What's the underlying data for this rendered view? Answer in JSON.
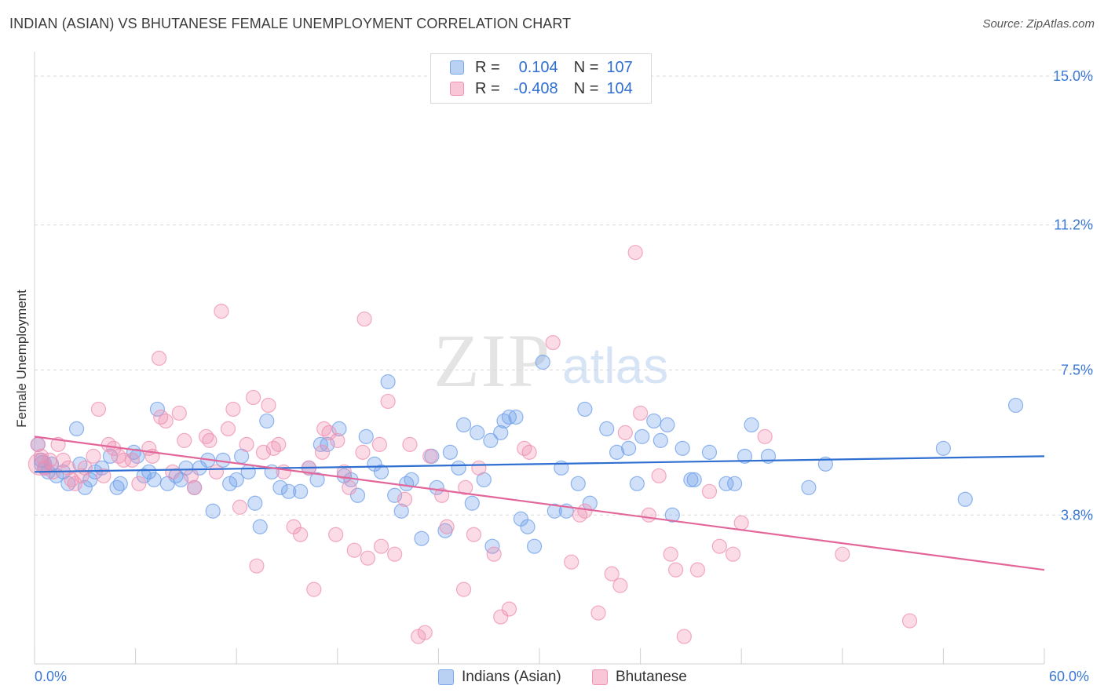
{
  "title": "INDIAN (ASIAN) VS BHUTANESE FEMALE UNEMPLOYMENT CORRELATION CHART",
  "source": "Source: ZipAtlas.com",
  "watermark": {
    "zip": "ZIP",
    "atlas": "atlas"
  },
  "legend": {
    "r_label": "R =",
    "n_label": "N =",
    "rows": [
      {
        "r": "0.104",
        "n": "107",
        "color": "#b9d2f3"
      },
      {
        "r": "-0.408",
        "n": "104",
        "color": "#f8c6d6"
      }
    ]
  },
  "chart_data": {
    "type": "scatter",
    "title": "INDIAN (ASIAN) VS BHUTANESE FEMALE UNEMPLOYMENT CORRELATION CHART",
    "xlabel": "",
    "ylabel": "Female Unemployment",
    "xlim": [
      0,
      60
    ],
    "ylim": [
      0,
      15
    ],
    "x_tick_labels": [
      "0.0%",
      "60.0%"
    ],
    "y_ticks": [
      3.8,
      7.5,
      11.2,
      15.0
    ],
    "y_tick_labels": [
      "3.8%",
      "7.5%",
      "11.2%",
      "15.0%"
    ],
    "grid": true,
    "legend_position": "top-center",
    "colors": {
      "blue": "#6d9eea",
      "pink": "#ef8fb0",
      "blue_line": "#2f6fd1",
      "pink_line": "#e3669a"
    },
    "series": [
      {
        "name": "Indians (Asian)",
        "r": 0.104,
        "n": 107,
        "trend": {
          "x": [
            0,
            60
          ],
          "y": [
            4.9,
            5.3
          ]
        },
        "points": [
          [
            0.2,
            5.6
          ],
          [
            0.4,
            5.2
          ],
          [
            0.6,
            5.0
          ],
          [
            0.8,
            4.9
          ],
          [
            1.0,
            5.1
          ],
          [
            1.3,
            4.8
          ],
          [
            1.7,
            4.9
          ],
          [
            2.0,
            4.6
          ],
          [
            2.5,
            6.0
          ],
          [
            2.7,
            5.1
          ],
          [
            3.0,
            4.5
          ],
          [
            3.3,
            4.7
          ],
          [
            3.6,
            4.9
          ],
          [
            4.0,
            5.0
          ],
          [
            4.5,
            5.3
          ],
          [
            4.9,
            4.5
          ],
          [
            5.1,
            4.6
          ],
          [
            5.9,
            5.4
          ],
          [
            6.1,
            5.3
          ],
          [
            6.5,
            4.8
          ],
          [
            6.8,
            4.9
          ],
          [
            7.1,
            4.7
          ],
          [
            7.3,
            6.5
          ],
          [
            7.9,
            4.6
          ],
          [
            8.4,
            4.8
          ],
          [
            8.7,
            4.7
          ],
          [
            9.0,
            5.0
          ],
          [
            9.5,
            4.5
          ],
          [
            9.8,
            5.0
          ],
          [
            10.3,
            5.2
          ],
          [
            10.6,
            3.9
          ],
          [
            11.2,
            5.2
          ],
          [
            11.6,
            4.6
          ],
          [
            12.0,
            4.7
          ],
          [
            12.3,
            5.3
          ],
          [
            12.7,
            4.9
          ],
          [
            13.1,
            4.1
          ],
          [
            13.4,
            3.5
          ],
          [
            13.8,
            6.2
          ],
          [
            14.1,
            4.9
          ],
          [
            14.6,
            4.5
          ],
          [
            15.1,
            4.4
          ],
          [
            15.8,
            4.4
          ],
          [
            16.3,
            5.0
          ],
          [
            16.8,
            4.7
          ],
          [
            17.0,
            5.6
          ],
          [
            17.4,
            5.6
          ],
          [
            18.1,
            6.0
          ],
          [
            18.4,
            4.8
          ],
          [
            18.8,
            4.7
          ],
          [
            19.2,
            4.3
          ],
          [
            19.7,
            5.8
          ],
          [
            20.2,
            5.1
          ],
          [
            20.6,
            4.9
          ],
          [
            21.0,
            7.2
          ],
          [
            21.4,
            4.3
          ],
          [
            21.8,
            3.9
          ],
          [
            22.1,
            4.6
          ],
          [
            22.4,
            4.7
          ],
          [
            23.0,
            3.2
          ],
          [
            23.6,
            5.3
          ],
          [
            23.9,
            4.5
          ],
          [
            24.4,
            3.4
          ],
          [
            24.7,
            5.4
          ],
          [
            25.2,
            5.0
          ],
          [
            25.5,
            6.1
          ],
          [
            26.0,
            4.1
          ],
          [
            26.3,
            5.9
          ],
          [
            26.7,
            4.7
          ],
          [
            27.1,
            5.7
          ],
          [
            27.2,
            3.0
          ],
          [
            27.7,
            5.9
          ],
          [
            27.9,
            6.2
          ],
          [
            28.2,
            6.3
          ],
          [
            28.6,
            6.3
          ],
          [
            28.9,
            3.7
          ],
          [
            29.3,
            3.5
          ],
          [
            29.7,
            3.0
          ],
          [
            30.2,
            7.7
          ],
          [
            30.9,
            3.9
          ],
          [
            31.3,
            5.0
          ],
          [
            31.6,
            3.9
          ],
          [
            32.3,
            4.6
          ],
          [
            32.7,
            6.5
          ],
          [
            33.0,
            4.1
          ],
          [
            34.0,
            6.0
          ],
          [
            34.6,
            5.4
          ],
          [
            35.3,
            5.5
          ],
          [
            35.8,
            4.6
          ],
          [
            36.1,
            5.8
          ],
          [
            36.8,
            6.2
          ],
          [
            37.2,
            5.7
          ],
          [
            37.6,
            6.1
          ],
          [
            37.9,
            3.8
          ],
          [
            38.5,
            5.5
          ],
          [
            39.0,
            4.7
          ],
          [
            39.2,
            4.7
          ],
          [
            40.1,
            5.4
          ],
          [
            41.1,
            4.6
          ],
          [
            41.6,
            4.6
          ],
          [
            42.2,
            5.3
          ],
          [
            42.6,
            6.1
          ],
          [
            43.6,
            5.3
          ],
          [
            46.0,
            4.5
          ],
          [
            47.0,
            5.1
          ],
          [
            54.0,
            5.5
          ],
          [
            55.3,
            4.2
          ],
          [
            58.3,
            6.6
          ]
        ]
      },
      {
        "name": "Bhutanese",
        "r": -0.408,
        "n": 104,
        "trend": {
          "x": [
            0,
            60
          ],
          "y": [
            5.8,
            2.4
          ]
        },
        "points": [
          [
            0.2,
            5.6
          ],
          [
            0.4,
            5.3
          ],
          [
            0.6,
            5.0
          ],
          [
            0.9,
            5.2
          ],
          [
            1.1,
            4.9
          ],
          [
            1.4,
            5.6
          ],
          [
            1.7,
            5.2
          ],
          [
            2.0,
            5.0
          ],
          [
            2.2,
            4.7
          ],
          [
            2.4,
            4.6
          ],
          [
            2.8,
            4.8
          ],
          [
            3.0,
            5.0
          ],
          [
            3.5,
            5.3
          ],
          [
            3.8,
            6.5
          ],
          [
            4.1,
            4.8
          ],
          [
            4.4,
            5.6
          ],
          [
            4.7,
            5.5
          ],
          [
            5.0,
            5.3
          ],
          [
            5.3,
            5.2
          ],
          [
            5.8,
            5.2
          ],
          [
            6.2,
            4.6
          ],
          [
            6.8,
            5.5
          ],
          [
            7.0,
            5.3
          ],
          [
            7.4,
            7.8
          ],
          [
            7.5,
            6.3
          ],
          [
            7.8,
            6.2
          ],
          [
            8.2,
            4.9
          ],
          [
            8.6,
            6.4
          ],
          [
            8.9,
            5.7
          ],
          [
            9.3,
            4.8
          ],
          [
            9.5,
            4.5
          ],
          [
            10.2,
            5.8
          ],
          [
            10.4,
            5.7
          ],
          [
            10.8,
            4.9
          ],
          [
            11.1,
            9.0
          ],
          [
            11.5,
            6.0
          ],
          [
            11.8,
            6.5
          ],
          [
            12.2,
            4.0
          ],
          [
            12.6,
            5.6
          ],
          [
            13.0,
            6.8
          ],
          [
            13.2,
            2.5
          ],
          [
            13.6,
            5.4
          ],
          [
            13.9,
            6.6
          ],
          [
            14.2,
            5.5
          ],
          [
            14.5,
            5.6
          ],
          [
            14.8,
            4.9
          ],
          [
            15.4,
            3.5
          ],
          [
            15.8,
            3.3
          ],
          [
            16.3,
            5.0
          ],
          [
            16.6,
            1.9
          ],
          [
            17.1,
            5.4
          ],
          [
            17.2,
            6.0
          ],
          [
            17.5,
            5.9
          ],
          [
            17.9,
            3.3
          ],
          [
            18.0,
            5.7
          ],
          [
            18.4,
            4.9
          ],
          [
            18.7,
            4.5
          ],
          [
            19.0,
            2.9
          ],
          [
            19.5,
            5.4
          ],
          [
            19.6,
            8.8
          ],
          [
            19.8,
            2.7
          ],
          [
            20.5,
            5.6
          ],
          [
            20.6,
            3.0
          ],
          [
            21.0,
            6.7
          ],
          [
            21.4,
            2.8
          ],
          [
            22.0,
            4.2
          ],
          [
            22.3,
            5.6
          ],
          [
            22.8,
            0.7
          ],
          [
            23.2,
            0.8
          ],
          [
            23.5,
            5.3
          ],
          [
            24.2,
            4.3
          ],
          [
            24.5,
            3.5
          ],
          [
            25.5,
            1.9
          ],
          [
            25.6,
            4.5
          ],
          [
            26.1,
            3.3
          ],
          [
            26.4,
            5.0
          ],
          [
            27.3,
            2.8
          ],
          [
            27.7,
            1.2
          ],
          [
            28.2,
            1.4
          ],
          [
            29.1,
            5.5
          ],
          [
            29.4,
            5.4
          ],
          [
            30.8,
            8.2
          ],
          [
            31.9,
            2.6
          ],
          [
            32.4,
            3.8
          ],
          [
            32.7,
            3.9
          ],
          [
            33.5,
            1.3
          ],
          [
            34.3,
            2.3
          ],
          [
            34.8,
            2.0
          ],
          [
            35.1,
            5.9
          ],
          [
            36.0,
            6.4
          ],
          [
            36.5,
            3.8
          ],
          [
            37.1,
            4.8
          ],
          [
            37.8,
            2.8
          ],
          [
            38.1,
            2.4
          ],
          [
            38.6,
            0.7
          ],
          [
            39.4,
            2.4
          ],
          [
            40.1,
            4.4
          ],
          [
            40.7,
            3.0
          ],
          [
            41.5,
            2.8
          ],
          [
            42.0,
            3.6
          ],
          [
            43.4,
            5.8
          ],
          [
            48.0,
            2.8
          ],
          [
            52.0,
            1.1
          ],
          [
            35.7,
            10.5
          ]
        ]
      }
    ]
  },
  "bottom_legend": [
    {
      "label": "Indians (Asian)"
    },
    {
      "label": "Bhutanese"
    }
  ]
}
